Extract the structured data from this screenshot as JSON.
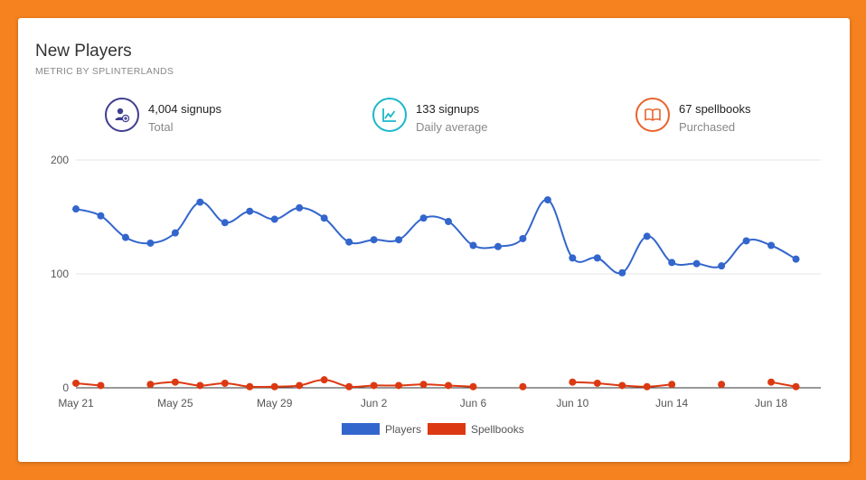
{
  "header": {
    "title": "New Players",
    "subtitle": "METRIC BY SPLINTERLANDS"
  },
  "stats": [
    {
      "value": "4,004 signups",
      "label": "Total",
      "icon": "add-user-icon",
      "color": "#3f3f8f"
    },
    {
      "value": "133 signups",
      "label": "Daily average",
      "icon": "line-chart-icon",
      "color": "#1ab8c9"
    },
    {
      "value": "67 spellbooks",
      "label": "Purchased",
      "icon": "open-book-icon",
      "color": "#e8632b"
    }
  ],
  "chart_data": {
    "type": "line",
    "x": [
      "May 21",
      "May 22",
      "May 23",
      "May 24",
      "May 25",
      "May 26",
      "May 27",
      "May 28",
      "May 29",
      "May 30",
      "May 31",
      "Jun 1",
      "Jun 2",
      "Jun 3",
      "Jun 4",
      "Jun 5",
      "Jun 6",
      "Jun 7",
      "Jun 8",
      "Jun 9",
      "Jun 10",
      "Jun 11",
      "Jun 12",
      "Jun 13",
      "Jun 14",
      "Jun 15",
      "Jun 16",
      "Jun 17",
      "Jun 18",
      "Jun 19",
      "Jun 20"
    ],
    "x_tick_labels": [
      "May 21",
      "May 25",
      "May 29",
      "Jun 2",
      "Jun 6",
      "Jun 10",
      "Jun 14",
      "Jun 18"
    ],
    "x_tick_indices": [
      0,
      4,
      8,
      12,
      16,
      20,
      24,
      28
    ],
    "series": [
      {
        "name": "Players",
        "color": "#3366cc",
        "values": [
          157,
          151,
          132,
          127,
          136,
          163,
          145,
          155,
          148,
          158,
          149,
          128,
          130,
          130,
          149,
          146,
          125,
          124,
          131,
          165,
          114,
          114,
          101,
          133,
          110,
          109,
          107,
          129,
          125,
          113,
          null
        ]
      },
      {
        "name": "Spellbooks",
        "color": "#dc3912",
        "values": [
          4,
          2,
          null,
          3,
          5,
          2,
          4,
          1,
          1,
          2,
          7,
          1,
          2,
          2,
          3,
          2,
          1,
          null,
          1,
          null,
          5,
          4,
          2,
          1,
          3,
          null,
          3,
          null,
          5,
          1,
          null
        ]
      }
    ],
    "ylim": [
      0,
      200
    ],
    "y_ticks": [
      0,
      100,
      200
    ],
    "grid": true,
    "legend": "bottom"
  }
}
